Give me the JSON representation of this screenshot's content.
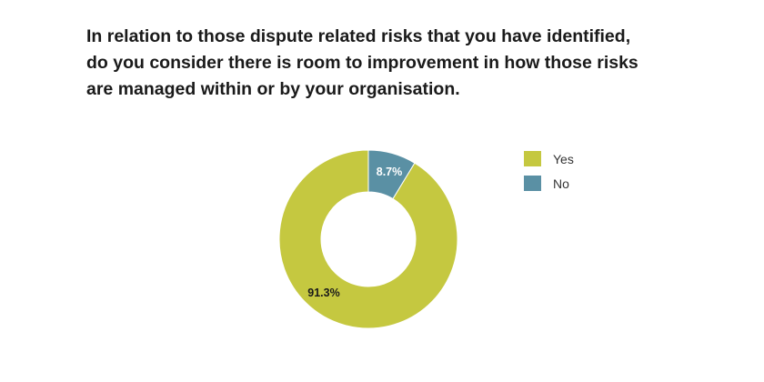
{
  "title_lines": [
    "In relation to those dispute related risks that you have identified,",
    "do you consider there is room to improvement in how those risks",
    "are managed within or by your organisation."
  ],
  "chart_data": {
    "type": "pie",
    "donut": true,
    "title": "In relation to those dispute related risks that you have identified, do you consider there is room to improvement in how those risks are managed within or by your organisation.",
    "legend_position": "right",
    "slices": [
      {
        "label": "Yes",
        "value": 91.3,
        "display": "91.3%",
        "color": "#c5c840"
      },
      {
        "label": "No",
        "value": 8.7,
        "display": "8.7%",
        "color": "#5a90a4"
      }
    ]
  }
}
